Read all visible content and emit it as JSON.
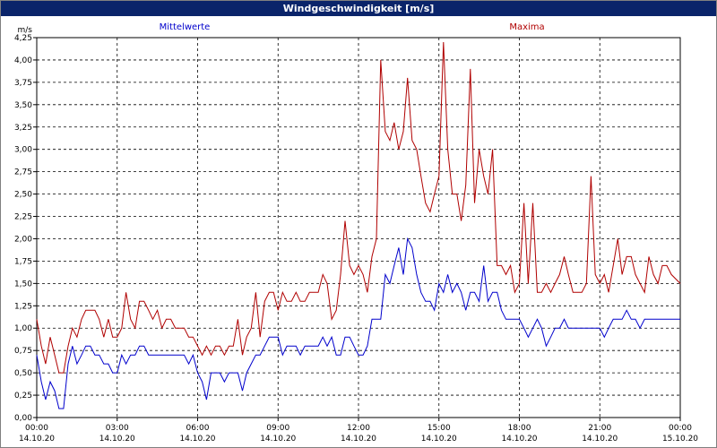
{
  "window": {
    "title": "Windgeschwindigkeit [m/s]"
  },
  "chart_data": {
    "type": "line",
    "ylabel": "m/s",
    "ylim": [
      0,
      4.25
    ],
    "y_ticks": [
      "0,00",
      "0,25",
      "0,50",
      "0,75",
      "1,00",
      "1,25",
      "1,50",
      "1,75",
      "2,00",
      "2,25",
      "2,50",
      "2,75",
      "3,00",
      "3,25",
      "3,50",
      "3,75",
      "4,00",
      "4,25"
    ],
    "x_ticks": [
      {
        "time": "00:00",
        "date": "14.10.20",
        "hour": 0
      },
      {
        "time": "03:00",
        "date": "14.10.20",
        "hour": 3
      },
      {
        "time": "06:00",
        "date": "14.10.20",
        "hour": 6
      },
      {
        "time": "09:00",
        "date": "14.10.20",
        "hour": 9
      },
      {
        "time": "12:00",
        "date": "14.10.20",
        "hour": 12
      },
      {
        "time": "15:00",
        "date": "14.10.20",
        "hour": 15
      },
      {
        "time": "18:00",
        "date": "14.10.20",
        "hour": 18
      },
      {
        "time": "21:00",
        "date": "14.10.20",
        "hour": 21
      },
      {
        "time": "00:00",
        "date": "15.10.20",
        "hour": 24
      }
    ],
    "xlim": [
      0,
      24
    ],
    "grid": true,
    "series": [
      {
        "name": "Mittelwerte",
        "color": "#0000cc",
        "points": [
          [
            0.0,
            0.7
          ],
          [
            0.17,
            0.4
          ],
          [
            0.33,
            0.2
          ],
          [
            0.5,
            0.4
          ],
          [
            0.67,
            0.3
          ],
          [
            0.83,
            0.1
          ],
          [
            1.0,
            0.1
          ],
          [
            1.17,
            0.6
          ],
          [
            1.33,
            0.8
          ],
          [
            1.5,
            0.6
          ],
          [
            1.67,
            0.7
          ],
          [
            1.83,
            0.8
          ],
          [
            2.0,
            0.8
          ],
          [
            2.17,
            0.7
          ],
          [
            2.33,
            0.7
          ],
          [
            2.5,
            0.6
          ],
          [
            2.67,
            0.6
          ],
          [
            2.83,
            0.5
          ],
          [
            3.0,
            0.5
          ],
          [
            3.17,
            0.7
          ],
          [
            3.33,
            0.6
          ],
          [
            3.5,
            0.7
          ],
          [
            3.67,
            0.7
          ],
          [
            3.83,
            0.8
          ],
          [
            4.0,
            0.8
          ],
          [
            4.17,
            0.7
          ],
          [
            4.5,
            0.7
          ],
          [
            5.0,
            0.7
          ],
          [
            5.5,
            0.7
          ],
          [
            5.67,
            0.6
          ],
          [
            5.83,
            0.7
          ],
          [
            6.0,
            0.5
          ],
          [
            6.17,
            0.4
          ],
          [
            6.33,
            0.2
          ],
          [
            6.5,
            0.5
          ],
          [
            6.67,
            0.5
          ],
          [
            6.83,
            0.5
          ],
          [
            7.0,
            0.4
          ],
          [
            7.17,
            0.5
          ],
          [
            7.5,
            0.5
          ],
          [
            7.67,
            0.3
          ],
          [
            7.83,
            0.5
          ],
          [
            8.0,
            0.6
          ],
          [
            8.17,
            0.7
          ],
          [
            8.33,
            0.7
          ],
          [
            8.5,
            0.8
          ],
          [
            8.67,
            0.9
          ],
          [
            9.0,
            0.9
          ],
          [
            9.17,
            0.7
          ],
          [
            9.33,
            0.8
          ],
          [
            9.67,
            0.8
          ],
          [
            9.83,
            0.7
          ],
          [
            10.0,
            0.8
          ],
          [
            10.5,
            0.8
          ],
          [
            10.67,
            0.9
          ],
          [
            10.83,
            0.8
          ],
          [
            11.0,
            0.9
          ],
          [
            11.17,
            0.7
          ],
          [
            11.33,
            0.7
          ],
          [
            11.5,
            0.9
          ],
          [
            11.67,
            0.9
          ],
          [
            11.83,
            0.8
          ],
          [
            12.0,
            0.7
          ],
          [
            12.17,
            0.7
          ],
          [
            12.33,
            0.8
          ],
          [
            12.5,
            1.1
          ],
          [
            12.83,
            1.1
          ],
          [
            13.0,
            1.6
          ],
          [
            13.17,
            1.5
          ],
          [
            13.33,
            1.7
          ],
          [
            13.5,
            1.9
          ],
          [
            13.67,
            1.6
          ],
          [
            13.83,
            2.0
          ],
          [
            14.0,
            1.9
          ],
          [
            14.17,
            1.6
          ],
          [
            14.33,
            1.4
          ],
          [
            14.5,
            1.3
          ],
          [
            14.67,
            1.3
          ],
          [
            14.83,
            1.2
          ],
          [
            15.0,
            1.5
          ],
          [
            15.17,
            1.4
          ],
          [
            15.33,
            1.6
          ],
          [
            15.5,
            1.4
          ],
          [
            15.67,
            1.5
          ],
          [
            15.83,
            1.4
          ],
          [
            16.0,
            1.2
          ],
          [
            16.17,
            1.4
          ],
          [
            16.33,
            1.4
          ],
          [
            16.5,
            1.3
          ],
          [
            16.67,
            1.7
          ],
          [
            16.83,
            1.3
          ],
          [
            17.0,
            1.4
          ],
          [
            17.17,
            1.4
          ],
          [
            17.33,
            1.2
          ],
          [
            17.5,
            1.1
          ],
          [
            17.67,
            1.1
          ],
          [
            18.0,
            1.1
          ],
          [
            18.17,
            1.0
          ],
          [
            18.33,
            0.9
          ],
          [
            18.5,
            1.0
          ],
          [
            18.67,
            1.1
          ],
          [
            18.83,
            1.0
          ],
          [
            19.0,
            0.8
          ],
          [
            19.17,
            0.9
          ],
          [
            19.33,
            1.0
          ],
          [
            19.5,
            1.0
          ],
          [
            19.67,
            1.1
          ],
          [
            19.83,
            1.0
          ],
          [
            20.0,
            1.0
          ],
          [
            21.0,
            1.0
          ],
          [
            21.17,
            0.9
          ],
          [
            21.33,
            1.0
          ],
          [
            21.5,
            1.1
          ],
          [
            21.83,
            1.1
          ],
          [
            22.0,
            1.2
          ],
          [
            22.17,
            1.1
          ],
          [
            22.33,
            1.1
          ],
          [
            22.5,
            1.0
          ],
          [
            22.67,
            1.1
          ],
          [
            23.0,
            1.1
          ],
          [
            24.0,
            1.1
          ]
        ]
      },
      {
        "name": "Maxima",
        "color": "#b00000",
        "points": [
          [
            0.0,
            1.1
          ],
          [
            0.17,
            0.8
          ],
          [
            0.33,
            0.6
          ],
          [
            0.5,
            0.9
          ],
          [
            0.67,
            0.7
          ],
          [
            0.83,
            0.5
          ],
          [
            1.0,
            0.5
          ],
          [
            1.17,
            0.8
          ],
          [
            1.33,
            1.0
          ],
          [
            1.5,
            0.9
          ],
          [
            1.67,
            1.1
          ],
          [
            1.83,
            1.2
          ],
          [
            2.0,
            1.2
          ],
          [
            2.17,
            1.2
          ],
          [
            2.33,
            1.1
          ],
          [
            2.5,
            0.9
          ],
          [
            2.67,
            1.1
          ],
          [
            2.83,
            0.9
          ],
          [
            3.0,
            0.9
          ],
          [
            3.17,
            1.0
          ],
          [
            3.33,
            1.4
          ],
          [
            3.5,
            1.1
          ],
          [
            3.67,
            1.0
          ],
          [
            3.83,
            1.3
          ],
          [
            4.0,
            1.3
          ],
          [
            4.17,
            1.2
          ],
          [
            4.33,
            1.1
          ],
          [
            4.5,
            1.2
          ],
          [
            4.67,
            1.0
          ],
          [
            4.83,
            1.1
          ],
          [
            5.0,
            1.1
          ],
          [
            5.17,
            1.0
          ],
          [
            5.33,
            1.0
          ],
          [
            5.5,
            1.0
          ],
          [
            5.67,
            0.9
          ],
          [
            5.83,
            0.9
          ],
          [
            6.0,
            0.8
          ],
          [
            6.17,
            0.7
          ],
          [
            6.33,
            0.8
          ],
          [
            6.5,
            0.7
          ],
          [
            6.67,
            0.8
          ],
          [
            6.83,
            0.8
          ],
          [
            7.0,
            0.7
          ],
          [
            7.17,
            0.8
          ],
          [
            7.33,
            0.8
          ],
          [
            7.5,
            1.1
          ],
          [
            7.67,
            0.7
          ],
          [
            7.83,
            0.9
          ],
          [
            8.0,
            1.0
          ],
          [
            8.17,
            1.4
          ],
          [
            8.33,
            0.9
          ],
          [
            8.5,
            1.3
          ],
          [
            8.67,
            1.4
          ],
          [
            8.83,
            1.4
          ],
          [
            9.0,
            1.2
          ],
          [
            9.17,
            1.4
          ],
          [
            9.33,
            1.3
          ],
          [
            9.5,
            1.3
          ],
          [
            9.67,
            1.4
          ],
          [
            9.83,
            1.3
          ],
          [
            10.0,
            1.3
          ],
          [
            10.17,
            1.4
          ],
          [
            10.33,
            1.4
          ],
          [
            10.5,
            1.4
          ],
          [
            10.67,
            1.6
          ],
          [
            10.83,
            1.5
          ],
          [
            11.0,
            1.1
          ],
          [
            11.17,
            1.2
          ],
          [
            11.33,
            1.6
          ],
          [
            11.5,
            2.2
          ],
          [
            11.67,
            1.7
          ],
          [
            11.83,
            1.6
          ],
          [
            12.0,
            1.7
          ],
          [
            12.17,
            1.6
          ],
          [
            12.33,
            1.4
          ],
          [
            12.5,
            1.8
          ],
          [
            12.67,
            2.0
          ],
          [
            12.83,
            4.0
          ],
          [
            13.0,
            3.2
          ],
          [
            13.17,
            3.1
          ],
          [
            13.33,
            3.3
          ],
          [
            13.5,
            3.0
          ],
          [
            13.67,
            3.2
          ],
          [
            13.83,
            3.8
          ],
          [
            14.0,
            3.1
          ],
          [
            14.17,
            3.0
          ],
          [
            14.33,
            2.7
          ],
          [
            14.5,
            2.4
          ],
          [
            14.67,
            2.3
          ],
          [
            14.83,
            2.5
          ],
          [
            15.0,
            2.7
          ],
          [
            15.17,
            4.2
          ],
          [
            15.33,
            3.0
          ],
          [
            15.5,
            2.5
          ],
          [
            15.67,
            2.5
          ],
          [
            15.83,
            2.2
          ],
          [
            16.0,
            2.6
          ],
          [
            16.17,
            3.9
          ],
          [
            16.33,
            2.4
          ],
          [
            16.5,
            3.0
          ],
          [
            16.67,
            2.7
          ],
          [
            16.83,
            2.5
          ],
          [
            17.0,
            3.0
          ],
          [
            17.17,
            1.7
          ],
          [
            17.33,
            1.7
          ],
          [
            17.5,
            1.6
          ],
          [
            17.67,
            1.7
          ],
          [
            17.83,
            1.4
          ],
          [
            18.0,
            1.5
          ],
          [
            18.17,
            2.4
          ],
          [
            18.33,
            1.5
          ],
          [
            18.5,
            2.4
          ],
          [
            18.67,
            1.4
          ],
          [
            18.83,
            1.4
          ],
          [
            19.0,
            1.5
          ],
          [
            19.17,
            1.4
          ],
          [
            19.33,
            1.5
          ],
          [
            19.5,
            1.6
          ],
          [
            19.67,
            1.8
          ],
          [
            19.83,
            1.6
          ],
          [
            20.0,
            1.4
          ],
          [
            20.33,
            1.4
          ],
          [
            20.5,
            1.5
          ],
          [
            20.67,
            2.7
          ],
          [
            20.83,
            1.6
          ],
          [
            21.0,
            1.5
          ],
          [
            21.17,
            1.6
          ],
          [
            21.33,
            1.4
          ],
          [
            21.5,
            1.7
          ],
          [
            21.67,
            2.0
          ],
          [
            21.83,
            1.6
          ],
          [
            22.0,
            1.8
          ],
          [
            22.17,
            1.8
          ],
          [
            22.33,
            1.6
          ],
          [
            22.5,
            1.5
          ],
          [
            22.67,
            1.4
          ],
          [
            22.83,
            1.8
          ],
          [
            23.0,
            1.6
          ],
          [
            23.17,
            1.5
          ],
          [
            23.33,
            1.7
          ],
          [
            23.5,
            1.7
          ],
          [
            23.67,
            1.6
          ],
          [
            24.0,
            1.5
          ]
        ]
      }
    ]
  }
}
